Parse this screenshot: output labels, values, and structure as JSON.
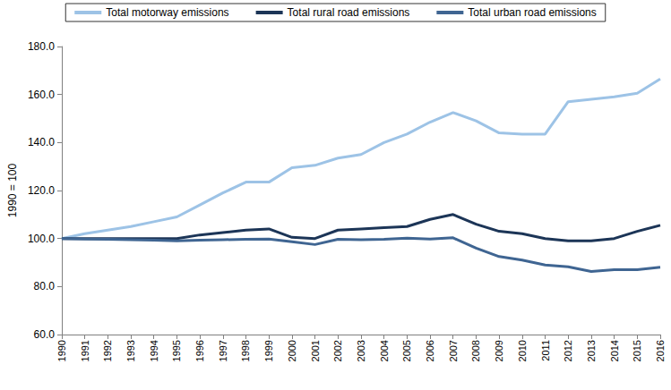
{
  "chart_data": {
    "type": "line",
    "y_label": "1990 = 100",
    "categories": [
      "1990",
      "1991",
      "1992",
      "1993",
      "1994",
      "1995",
      "1996",
      "1997",
      "1998",
      "1999",
      "2000",
      "2001",
      "2002",
      "2003",
      "2004",
      "2005",
      "2006",
      "2007",
      "2008",
      "2009",
      "2010",
      "2011",
      "2012",
      "2013",
      "2014",
      "2015",
      "2016"
    ],
    "series": [
      {
        "name": "Total motorway emissions",
        "color": "#9dc3e6",
        "values": [
          100,
          102,
          103.5,
          105,
          107,
          109,
          114,
          119,
          123.5,
          123.5,
          129.5,
          130.5,
          133.5,
          135,
          140,
          143.5,
          148.5,
          152.5,
          149,
          144,
          143.5,
          143.5,
          157,
          158,
          159,
          160.5,
          166.5
        ]
      },
      {
        "name": "Total rural road emissions",
        "color": "#1c3557",
        "values": [
          100,
          100,
          100,
          100,
          100,
          100,
          101.5,
          102.5,
          103.5,
          104,
          100.5,
          100,
          103.5,
          104,
          104.5,
          105,
          108,
          110,
          106,
          103,
          102,
          100,
          99,
          99,
          100,
          103,
          105.5
        ]
      },
      {
        "name": "Total urban road emissions",
        "color": "#3f6592",
        "values": [
          100,
          99.8,
          99.7,
          99.5,
          99.3,
          99,
          99.3,
          99.5,
          99.7,
          99.8,
          98.7,
          97.5,
          99.7,
          99.5,
          99.7,
          100.2,
          99.8,
          100.3,
          96,
          92.5,
          91,
          89,
          88.2,
          86.3,
          87,
          87,
          88
        ]
      }
    ],
    "ylim": [
      60,
      180
    ],
    "yticks": [
      {
        "value": 60,
        "label": "60.0"
      },
      {
        "value": 80,
        "label": "80.0"
      },
      {
        "value": 100,
        "label": "100.0"
      },
      {
        "value": 120,
        "label": "120.0"
      },
      {
        "value": 140,
        "label": "140.0"
      },
      {
        "value": 160,
        "label": "160.0"
      },
      {
        "value": 180,
        "label": "180.0"
      }
    ],
    "grid": false,
    "legend": "top"
  }
}
